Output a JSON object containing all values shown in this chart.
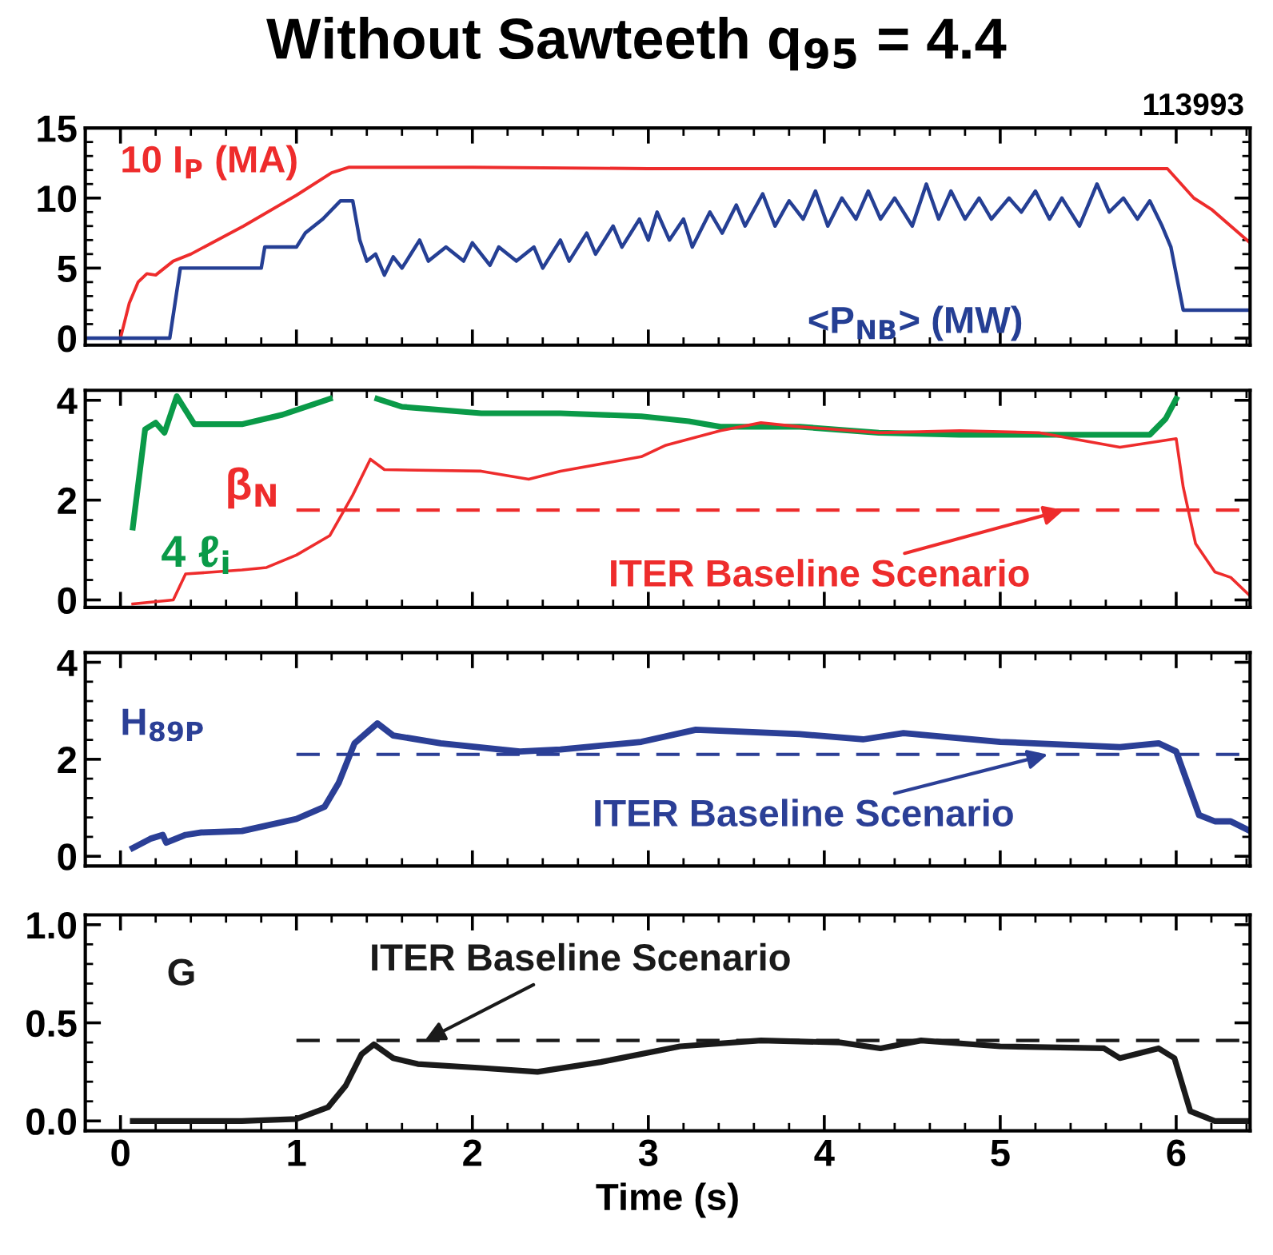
{
  "chart_data": [
    {
      "type": "line",
      "title": "Without Sawteeth q$_{95}$ = 4.4",
      "annotations": [
        "113993"
      ],
      "xlim": [
        -0.2,
        6.42
      ],
      "xticks": [
        0,
        1,
        2,
        3,
        4,
        5,
        6
      ],
      "ylim": [
        -0.5,
        15
      ],
      "yticks": [
        0,
        5,
        10,
        15
      ],
      "tick_labels": "y",
      "grid": false,
      "legend": false,
      "series": [
        {
          "name": "10 I$_{P}$ (MA)",
          "color": "#ee2c2c",
          "x": [
            -0.2,
            0.0,
            0.05,
            0.1,
            0.15,
            0.2,
            0.3,
            0.4,
            0.7,
            1.0,
            1.2,
            1.3,
            2.0,
            3.0,
            4.0,
            5.0,
            5.95,
            6.1,
            6.2,
            6.42
          ],
          "values": [
            0,
            0,
            2.5,
            4.0,
            4.6,
            4.5,
            5.5,
            6.0,
            8.0,
            10.2,
            11.8,
            12.2,
            12.2,
            12.1,
            12.1,
            12.1,
            12.1,
            10.0,
            9.2,
            6.8
          ]
        },
        {
          "name": "<P$_{NB}$> (MW)",
          "color": "#253f94",
          "x": [
            -0.2,
            0.28,
            0.34,
            0.8,
            0.82,
            1.0,
            1.05,
            1.15,
            1.25,
            1.32,
            1.36,
            1.4,
            1.45,
            1.5,
            1.55,
            1.6,
            1.7,
            1.75,
            1.85,
            1.95,
            2.0,
            2.1,
            2.15,
            2.25,
            2.35,
            2.4,
            2.5,
            2.55,
            2.65,
            2.7,
            2.8,
            2.85,
            2.95,
            3.0,
            3.05,
            3.12,
            3.2,
            3.25,
            3.35,
            3.42,
            3.5,
            3.55,
            3.65,
            3.72,
            3.8,
            3.88,
            3.95,
            4.02,
            4.1,
            4.18,
            4.25,
            4.32,
            4.4,
            4.5,
            4.58,
            4.65,
            4.72,
            4.8,
            4.88,
            4.95,
            5.05,
            5.12,
            5.2,
            5.28,
            5.35,
            5.45,
            5.55,
            5.62,
            5.7,
            5.78,
            5.85,
            5.92,
            5.97,
            6.04,
            6.42
          ],
          "values": [
            0,
            0,
            5,
            5,
            6.5,
            6.5,
            7.5,
            8.5,
            9.8,
            9.8,
            7,
            5.5,
            6,
            4.5,
            5.8,
            5,
            7,
            5.5,
            6.5,
            5.5,
            6.8,
            5.2,
            6.5,
            5.5,
            6.5,
            5,
            7,
            5.5,
            7.5,
            6,
            8,
            6.5,
            8.5,
            7,
            9,
            7,
            8.5,
            6.5,
            9,
            7.5,
            9.5,
            8,
            10.3,
            8,
            9.8,
            8.5,
            10.5,
            8,
            10,
            8.5,
            10.5,
            8.5,
            10,
            8,
            11,
            8.5,
            10.5,
            8.5,
            10,
            8.5,
            10,
            9,
            10.5,
            8.5,
            10,
            8,
            11,
            9,
            10,
            8.5,
            9.8,
            8,
            6.5,
            2,
            2
          ]
        }
      ]
    },
    {
      "type": "line",
      "annotations": [
        {
          "text": "ITER Baseline Scenario",
          "x": 5.36,
          "y": 1.8
        }
      ],
      "xlim": [
        -0.2,
        6.42
      ],
      "xticks": [
        0,
        1,
        2,
        3,
        4,
        5,
        6
      ],
      "ylim": [
        -0.15,
        4.2
      ],
      "yticks": [
        0,
        2,
        4
      ],
      "tick_labels": "y",
      "grid": false,
      "legend": false,
      "series": [
        {
          "name": "4 ℓ$_{i}$",
          "color": "#0a9a48",
          "x": [
            0.07,
            0.14,
            0.2,
            0.25,
            0.32,
            0.42,
            0.69,
            0.92,
            1.19,
            1.28,
            1.39,
            1.46,
            1.6,
            2.05,
            2.5,
            2.96,
            3.23,
            3.41,
            3.86,
            4.31,
            4.77,
            5.22,
            5.85,
            5.94,
            6.0
          ],
          "values": [
            1.45,
            3.42,
            3.55,
            3.35,
            4.08,
            3.52,
            3.52,
            3.71,
            4.03,
            null,
            null,
            4.03,
            3.87,
            3.74,
            3.74,
            3.68,
            3.58,
            3.47,
            3.47,
            3.35,
            3.31,
            3.31,
            3.31,
            3.63,
            4.03
          ]
        },
        {
          "name": "β$_{N}$",
          "color": "#ee2c2c",
          "x": [
            0.07,
            0.3,
            0.37,
            0.69,
            0.83,
            1.0,
            1.19,
            1.32,
            1.42,
            1.5,
            2.05,
            2.32,
            2.5,
            2.96,
            3.1,
            3.41,
            3.64,
            3.86,
            4.31,
            4.77,
            5.22,
            5.68,
            6.0,
            6.04,
            6.11,
            6.22,
            6.31,
            6.42
          ],
          "values": [
            -0.08,
            0.0,
            0.52,
            0.6,
            0.65,
            0.9,
            1.29,
            2.1,
            2.82,
            2.61,
            2.58,
            2.42,
            2.58,
            2.87,
            3.1,
            3.39,
            3.55,
            3.47,
            3.35,
            3.39,
            3.35,
            3.06,
            3.23,
            2.26,
            1.13,
            0.56,
            0.45,
            0.08
          ]
        },
        {
          "color": "#ee2c2c",
          "line_style": "dashed",
          "x": [
            1.0,
            6.42
          ],
          "values": [
            1.8,
            1.8
          ]
        }
      ]
    },
    {
      "type": "line",
      "annotations": [
        {
          "text": "ITER Baseline Scenario",
          "x": 5.27,
          "y": 2.1
        }
      ],
      "xlim": [
        -0.2,
        6.42
      ],
      "xticks": [
        0,
        1,
        2,
        3,
        4,
        5,
        6
      ],
      "ylim": [
        -0.2,
        4.2
      ],
      "yticks": [
        0,
        2,
        4
      ],
      "tick_labels": "y",
      "grid": false,
      "legend": false,
      "series": [
        {
          "name": "H$_{89P}$",
          "color": "#2b3f96",
          "x": [
            0.07,
            0.17,
            0.24,
            0.26,
            0.37,
            0.46,
            0.69,
            1.0,
            1.16,
            1.24,
            1.33,
            1.46,
            1.55,
            1.82,
            2.27,
            2.5,
            2.96,
            3.27,
            3.86,
            4.22,
            4.45,
            5.0,
            5.68,
            5.9,
            6.0,
            6.13,
            6.22,
            6.31,
            6.42
          ],
          "values": [
            0.17,
            0.36,
            0.44,
            0.28,
            0.44,
            0.49,
            0.52,
            0.77,
            1.02,
            1.51,
            2.33,
            2.74,
            2.49,
            2.33,
            2.16,
            2.2,
            2.36,
            2.61,
            2.52,
            2.41,
            2.54,
            2.36,
            2.25,
            2.33,
            2.16,
            0.85,
            0.72,
            0.72,
            0.52
          ]
        },
        {
          "color": "#2b3f96",
          "line_style": "dashed",
          "x": [
            1.0,
            6.42
          ],
          "values": [
            2.1,
            2.1
          ]
        }
      ]
    },
    {
      "type": "line",
      "xlabel": "Time (s)",
      "annotations": [
        {
          "text": "ITER Baseline Scenario",
          "x": 1.73,
          "y": 0.41
        }
      ],
      "xlim": [
        -0.2,
        6.42
      ],
      "xticks": [
        0,
        1,
        2,
        3,
        4,
        5,
        6
      ],
      "ylim": [
        -0.05,
        1.05
      ],
      "yticks": [
        {
          "value": 0,
          "label": "0.0"
        },
        0.5,
        {
          "value": 1,
          "label": "1.0"
        }
      ],
      "grid": false,
      "legend": false,
      "series": [
        {
          "name": "G",
          "color": "#1a1a1a",
          "x": [
            0.07,
            0.69,
            1.0,
            1.18,
            1.28,
            1.37,
            1.44,
            1.55,
            1.69,
            2.05,
            2.37,
            2.73,
            3.18,
            3.64,
            4.09,
            4.32,
            4.55,
            5.0,
            5.59,
            5.68,
            5.9,
            5.99,
            6.08,
            6.22,
            6.42
          ],
          "values": [
            0.0,
            0.0,
            0.01,
            0.07,
            0.18,
            0.34,
            0.39,
            0.32,
            0.29,
            0.27,
            0.25,
            0.3,
            0.38,
            0.41,
            0.4,
            0.37,
            0.41,
            0.38,
            0.37,
            0.32,
            0.37,
            0.32,
            0.05,
            0.0,
            0.0
          ]
        },
        {
          "color": "#1a1a1a",
          "line_style": "dashed",
          "x": [
            1.0,
            6.42
          ],
          "values": [
            0.41,
            0.41
          ]
        }
      ]
    }
  ]
}
